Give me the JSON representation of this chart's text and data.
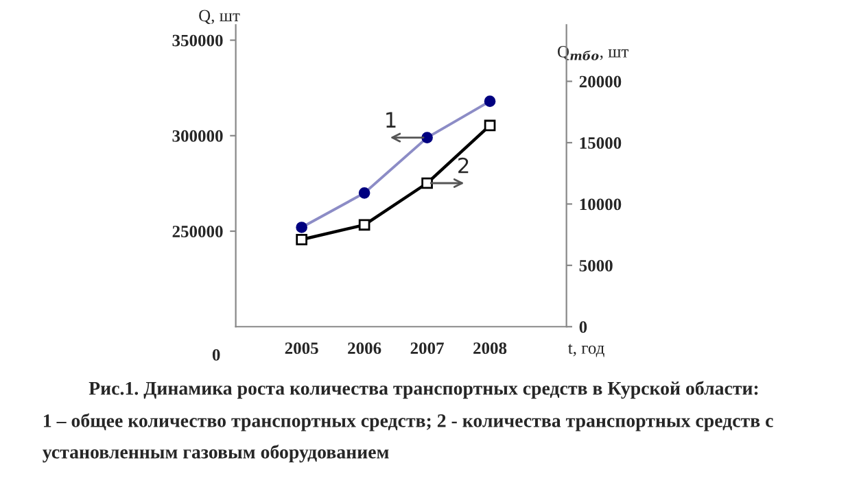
{
  "chart_data": {
    "type": "line",
    "ylabel": "Q, шт",
    "y2label": "Q$_{тбо}$, шт",
    "xlabel": "t, год",
    "categories": [
      "2005",
      "2006",
      "2007",
      "2008"
    ],
    "series": [
      {
        "name": "1",
        "color": "#000080",
        "marker": "circle",
        "values": [
          252000,
          270000,
          299000,
          318000
        ]
      },
      {
        "name": "2",
        "color": "#000000",
        "marker": "square",
        "axis": "y2",
        "values": [
          7100,
          8300,
          11700,
          16400
        ]
      }
    ],
    "ylim": [
      200000,
      358000
    ],
    "yticks": [
      250000,
      300000,
      350000
    ],
    "y2lim": [
      0,
      24600
    ],
    "y2ticks": [
      0,
      5000,
      10000,
      15000,
      20000
    ],
    "grid": false,
    "legend": false,
    "annotations": [
      "0",
      "Рис.1. Динамика роста количества транспортных средств в Курской области:",
      "1 – общее количество транспортных средств; 2 - количества транспортных средств с установленным газовым оборудованием"
    ]
  }
}
